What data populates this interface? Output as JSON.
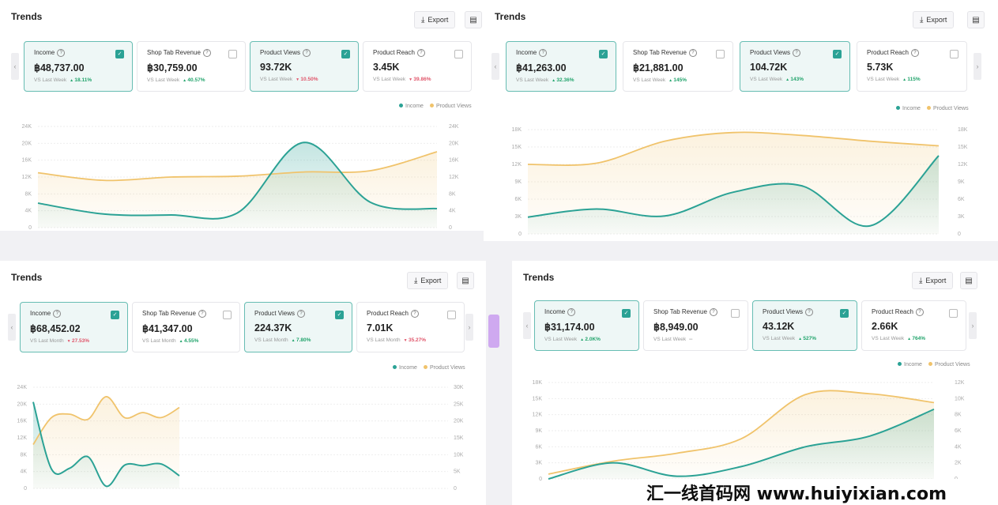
{
  "panels": [
    {
      "title": "Trends",
      "export_label": "Export",
      "icon_names": [
        "download-icon",
        "document-icon"
      ],
      "cards": [
        {
          "label": "Income",
          "value": "฿48,737.00",
          "compare": "VS Last Week",
          "change": "18.11%",
          "dir": "up",
          "checked": true
        },
        {
          "label": "Shop Tab Revenue",
          "value": "฿30,759.00",
          "compare": "VS Last Week",
          "change": "40.57%",
          "dir": "up",
          "checked": false
        },
        {
          "label": "Product Views",
          "value": "93.72K",
          "compare": "VS Last Week",
          "change": "10.50%",
          "dir": "down",
          "checked": true
        },
        {
          "label": "Product Reach",
          "value": "3.45K",
          "compare": "VS Last Week",
          "change": "39.86%",
          "dir": "down",
          "checked": false
        }
      ],
      "legend": [
        "Income",
        "Product Views"
      ],
      "chart_data": {
        "type": "area",
        "left_ticks": [
          "0",
          "4K",
          "8K",
          "12K",
          "16K",
          "20K",
          "24K"
        ],
        "right_ticks": [
          "0",
          "4K",
          "8K",
          "12K",
          "16K",
          "20K",
          "24K"
        ],
        "ylim_left": [
          0,
          24000
        ],
        "ylim_right": [
          0,
          24000
        ],
        "series": [
          {
            "name": "Income",
            "axis": "left",
            "color": "#2ba295",
            "values": [
              5800,
              3200,
              3000,
              3500,
              20200,
              6000,
              4500
            ]
          },
          {
            "name": "Product Views",
            "axis": "right",
            "color": "#f0c36b",
            "values": [
              13000,
              11200,
              12000,
              12200,
              13200,
              13500,
              18000
            ]
          }
        ]
      }
    },
    {
      "title": "Trends",
      "export_label": "Export",
      "icon_names": [
        "download-icon",
        "document-icon"
      ],
      "cards": [
        {
          "label": "Income",
          "value": "฿41,263.00",
          "compare": "VS Last Week",
          "change": "32.36%",
          "dir": "up",
          "checked": true
        },
        {
          "label": "Shop Tab Revenue",
          "value": "฿21,881.00",
          "compare": "VS Last Week",
          "change": "145%",
          "dir": "up",
          "checked": false
        },
        {
          "label": "Product Views",
          "value": "104.72K",
          "compare": "VS Last Week",
          "change": "143%",
          "dir": "up",
          "checked": true
        },
        {
          "label": "Product Reach",
          "value": "5.73K",
          "compare": "VS Last Week",
          "change": "115%",
          "dir": "up",
          "checked": false
        }
      ],
      "legend": [
        "Income",
        "Product Views"
      ],
      "chart_data": {
        "type": "area",
        "left_ticks": [
          "0",
          "3K",
          "6K",
          "9K",
          "12K",
          "15K",
          "18K"
        ],
        "right_ticks": [
          "0",
          "3K",
          "6K",
          "9K",
          "12K",
          "15K",
          "18K"
        ],
        "ylim_left": [
          0,
          18000
        ],
        "ylim_right": [
          0,
          18000
        ],
        "series": [
          {
            "name": "Income",
            "axis": "left",
            "color": "#2ba295",
            "values": [
              2900,
              4300,
              3100,
              7200,
              8300,
              1400,
              13500
            ]
          },
          {
            "name": "Product Views",
            "axis": "right",
            "color": "#f0c36b",
            "values": [
              12000,
              12200,
              16000,
              17500,
              17000,
              16000,
              15200
            ]
          }
        ]
      }
    },
    {
      "title": "Trends",
      "export_label": "Export",
      "icon_names": [
        "download-icon",
        "document-icon"
      ],
      "cards": [
        {
          "label": "Income",
          "value": "฿68,452.02",
          "compare": "VS Last Month",
          "change": "27.53%",
          "dir": "down",
          "checked": true
        },
        {
          "label": "Shop Tab Revenue",
          "value": "฿41,347.00",
          "compare": "VS Last Month",
          "change": "4.55%",
          "dir": "up",
          "checked": false
        },
        {
          "label": "Product Views",
          "value": "224.37K",
          "compare": "VS Last Month",
          "change": "7.80%",
          "dir": "up",
          "checked": true
        },
        {
          "label": "Product Reach",
          "value": "7.01K",
          "compare": "VS Last Month",
          "change": "35.27%",
          "dir": "down",
          "checked": false
        }
      ],
      "legend": [
        "Income",
        "Product Views"
      ],
      "chart_data": {
        "type": "area",
        "left_ticks": [
          "0",
          "4K",
          "8K",
          "12K",
          "16K",
          "20K",
          "24K"
        ],
        "right_ticks": [
          "0",
          "5K",
          "10K",
          "15K",
          "20K",
          "25K",
          "30K"
        ],
        "ylim_left": [
          0,
          24000
        ],
        "ylim_right": [
          0,
          30000
        ],
        "series": [
          {
            "name": "Income",
            "axis": "left",
            "color": "#2ba295",
            "values": [
              20500,
              4600,
              4800,
              7500,
              500,
              5500,
              5400,
              5800,
              3000
            ]
          },
          {
            "name": "Product Views",
            "axis": "right",
            "color": "#f0c36b",
            "values": [
              13000,
              21000,
              22000,
              20500,
              27200,
              21000,
              22500,
              21000,
              24000
            ]
          }
        ]
      }
    },
    {
      "title": "Trends",
      "export_label": "Export",
      "icon_names": [
        "download-icon",
        "document-icon"
      ],
      "cards": [
        {
          "label": "Income",
          "value": "฿31,174.00",
          "compare": "VS Last Week",
          "change": "2.0K%",
          "dir": "up",
          "checked": true
        },
        {
          "label": "Shop Tab Revenue",
          "value": "฿8,949.00",
          "compare": "VS Last Week",
          "change": "--",
          "dir": "none",
          "checked": false
        },
        {
          "label": "Product Views",
          "value": "43.12K",
          "compare": "VS Last Week",
          "change": "527%",
          "dir": "up",
          "checked": true
        },
        {
          "label": "Product Reach",
          "value": "2.66K",
          "compare": "VS Last Week",
          "change": "764%",
          "dir": "up",
          "checked": false
        }
      ],
      "legend": [
        "Income",
        "Product Views"
      ],
      "chart_data": {
        "type": "area",
        "left_ticks": [
          "0",
          "3K",
          "6K",
          "9K",
          "12K",
          "15K",
          "18K"
        ],
        "right_ticks": [
          "0",
          "2K",
          "4K",
          "6K",
          "8K",
          "10K",
          "12K"
        ],
        "ylim_left": [
          0,
          18000
        ],
        "ylim_right": [
          0,
          12000
        ],
        "series": [
          {
            "name": "Income",
            "axis": "left",
            "color": "#2ba295",
            "values": [
              0,
              3000,
              500,
              2300,
              6000,
              8000,
              13000
            ]
          },
          {
            "name": "Product Views",
            "axis": "right",
            "color": "#f0c36b",
            "values": [
              600,
              2200,
              3200,
              5000,
              10500,
              10600,
              9500
            ]
          }
        ]
      }
    }
  ],
  "watermark": "汇一线首码网 www.huiyixian.com"
}
